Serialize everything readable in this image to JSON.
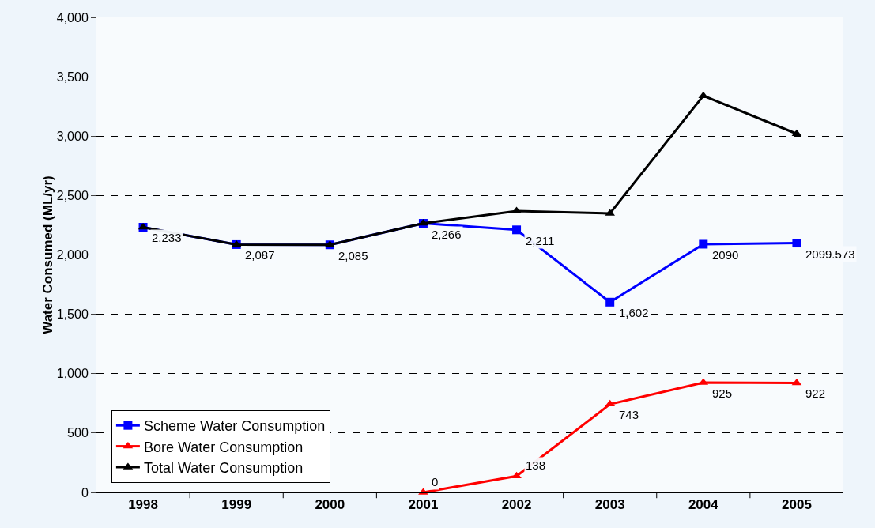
{
  "chart_data": {
    "type": "line",
    "ylabel": "Water Consumed (ML/yr)",
    "categories": [
      "1998",
      "1999",
      "2000",
      "2001",
      "2002",
      "2003",
      "2004",
      "2005"
    ],
    "series": [
      {
        "name": "Scheme Water Consumption",
        "color": "#0000ff",
        "marker": "square",
        "values": [
          2233,
          2087,
          2085,
          2266,
          2211,
          1602,
          2090,
          2099.573
        ],
        "value_labels": [
          "2,233",
          "2,087",
          "2,085",
          "2,266",
          "2,211",
          "1,602",
          "2090",
          "2099.573"
        ]
      },
      {
        "name": "Bore Water Consumption",
        "color": "#ff0000",
        "marker": "triangle",
        "values": [
          null,
          null,
          null,
          0,
          138,
          743,
          925,
          922
        ],
        "value_labels": [
          null,
          null,
          null,
          "0",
          "138",
          "743",
          "925",
          "922"
        ]
      },
      {
        "name": "Total Water Consumption",
        "color": "#000000",
        "marker": "triangle",
        "values": [
          2233,
          2087,
          2085,
          2266,
          2370,
          2350,
          3340,
          3020
        ]
      }
    ],
    "ylim": [
      0,
      4000
    ],
    "yticks": [
      0,
      500,
      {
        "value": 1000,
        "label": "1,000"
      },
      {
        "value": 1500,
        "label": "1,500"
      },
      {
        "value": 2000,
        "label": "2,000"
      },
      {
        "value": 2500,
        "label": "2,500"
      },
      {
        "value": 3000,
        "label": "3,000"
      },
      {
        "value": 3500,
        "label": "3,500"
      },
      {
        "value": 4000,
        "label": "4,000"
      }
    ],
    "grid": "y",
    "legend": "bottom left",
    "line_style": "solid"
  }
}
